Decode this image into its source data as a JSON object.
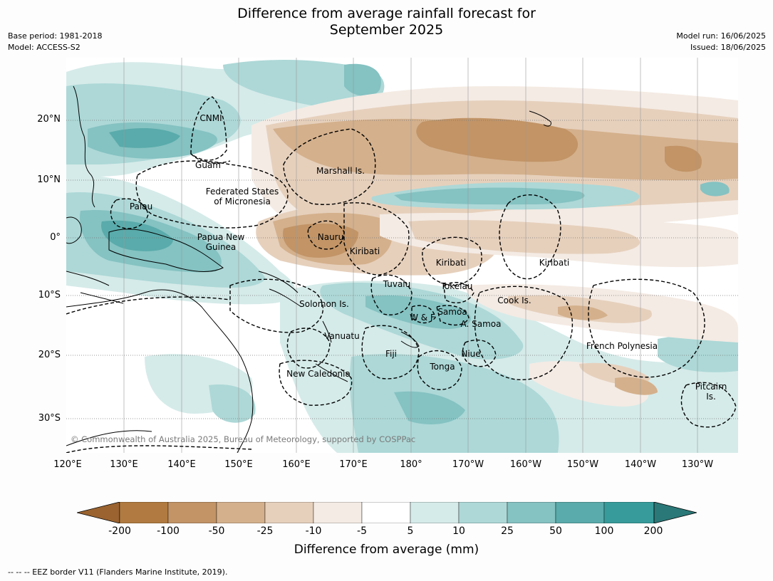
{
  "title_line1": "Difference from average rainfall forecast for",
  "title_line2": "September 2025",
  "meta_left": {
    "line1": "Base period: 1981-2018",
    "line2": "Model: ACCESS-S2"
  },
  "meta_right": {
    "line1": "Model run: 16/06/2025",
    "line2": "Issued: 18/06/2025"
  },
  "copyright": "© Commonwealth of Australia 2025, Bureau of Meteorology, supported by COSPPac",
  "footnote": "--  --  -- EEZ border V11 (Flanders Marine Institute, 2019).",
  "colorbar": {
    "title": "Difference from average (mm)",
    "labels": [
      "-200",
      "-100",
      "-50",
      "-25",
      "-10",
      "-5",
      "5",
      "10",
      "25",
      "50",
      "100",
      "200"
    ],
    "colors": [
      "#9a6330",
      "#b07a40",
      "#c29466",
      "#d4b08c",
      "#e6d0bc",
      "#f4ebe4",
      "#ffffff",
      "#d5ebe9",
      "#add8d7",
      "#85c2c2",
      "#5aabab",
      "#379b9b",
      "#2b7878"
    ]
  },
  "axes": {
    "lat_labels": [
      "20°N",
      "10°N",
      "0°",
      "10°S",
      "20°S",
      "30°S"
    ],
    "lon_labels": [
      "120°E",
      "130°E",
      "140°E",
      "150°E",
      "160°E",
      "170°E",
      "180°",
      "170°W",
      "160°W",
      "150°W",
      "140°W",
      "130°W"
    ]
  },
  "places": [
    "CNMI",
    "Guam",
    "Marshall Is.",
    "Federated States",
    "of Micronesia",
    "Palau",
    "Papua New",
    "Guinea",
    "Nauru",
    "Kiribati",
    "Kiribati",
    "Kiribati",
    "Tuvalu",
    "Tokelau",
    "Cook Is.",
    "Solomon Is.",
    "W & F",
    "Samoa",
    "A. Samoa",
    "Vanuatu",
    "Fiji",
    "Niue",
    "Tonga",
    "French Polynesia",
    "New Caledonia",
    "Pitcairn",
    "Is."
  ]
}
